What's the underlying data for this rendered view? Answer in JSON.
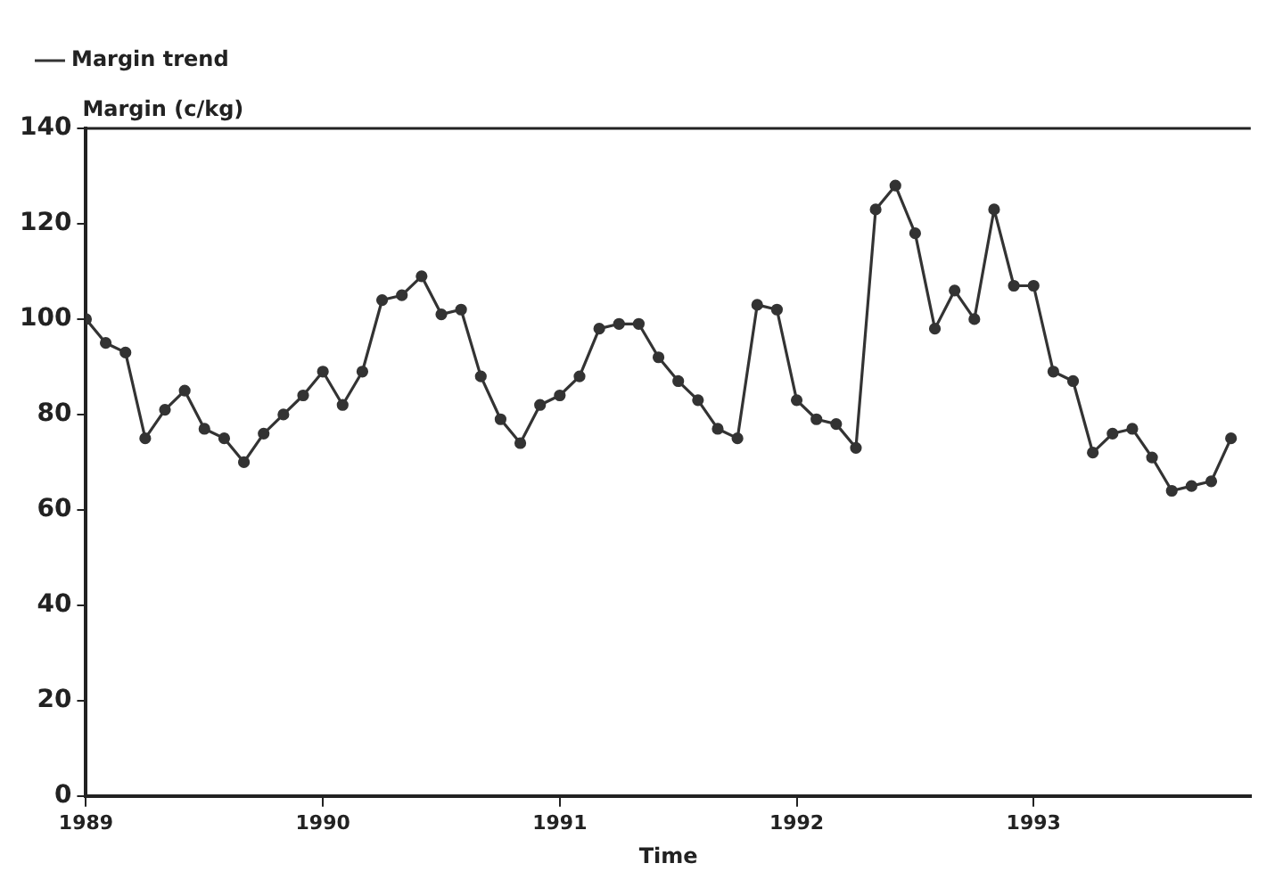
{
  "chart_data": {
    "type": "line",
    "xlabel": "Time",
    "ylabel": "Margin (c/kg)",
    "x": [
      "1989-01",
      "1989-02",
      "1989-03",
      "1989-04",
      "1989-05",
      "1989-06",
      "1989-07",
      "1989-08",
      "1989-09",
      "1989-10",
      "1989-11",
      "1989-12",
      "1990-01",
      "1990-02",
      "1990-03",
      "1990-04",
      "1990-05",
      "1990-06",
      "1990-07",
      "1990-08",
      "1990-09",
      "1990-10",
      "1990-11",
      "1990-12",
      "1991-01",
      "1991-02",
      "1991-03",
      "1991-04",
      "1991-05",
      "1991-06",
      "1991-07",
      "1991-08",
      "1991-09",
      "1991-10",
      "1991-11",
      "1991-12",
      "1992-01",
      "1992-02",
      "1992-03",
      "1992-04",
      "1992-05",
      "1992-06",
      "1992-07",
      "1992-08",
      "1992-09",
      "1992-10",
      "1992-11",
      "1992-12",
      "1993-01",
      "1993-02",
      "1993-03",
      "1993-04",
      "1993-05",
      "1993-06",
      "1993-07",
      "1993-08",
      "1993-09",
      "1993-10",
      "1993-11"
    ],
    "series": [
      {
        "name": "Margin trend",
        "color": "#333333",
        "values": [
          100,
          95,
          93,
          75,
          81,
          85,
          77,
          75,
          70,
          76,
          80,
          84,
          89,
          82,
          89,
          104,
          105,
          109,
          101,
          102,
          88,
          79,
          74,
          82,
          84,
          88,
          98,
          99,
          99,
          92,
          87,
          83,
          77,
          75,
          103,
          102,
          83,
          79,
          78,
          73,
          123,
          128,
          118,
          98,
          106,
          100,
          123,
          107,
          107,
          89,
          87,
          72,
          76,
          77,
          71,
          64,
          65,
          66,
          75
        ]
      }
    ],
    "xlim": [
      "1989-01",
      "1993-12"
    ],
    "xticks": [
      {
        "value": "1989",
        "label": "1989"
      },
      {
        "value": "1990",
        "label": "1990"
      },
      {
        "value": "1991",
        "label": "1991"
      },
      {
        "value": "1992",
        "label": "1992"
      },
      {
        "value": "1993",
        "label": "1993"
      }
    ],
    "ylim": [
      0,
      140
    ],
    "yticks": [
      0,
      20,
      40,
      60,
      80,
      100,
      120,
      140
    ],
    "grid": false,
    "legend": "top left",
    "marker": "circle",
    "line_style": "solid"
  }
}
